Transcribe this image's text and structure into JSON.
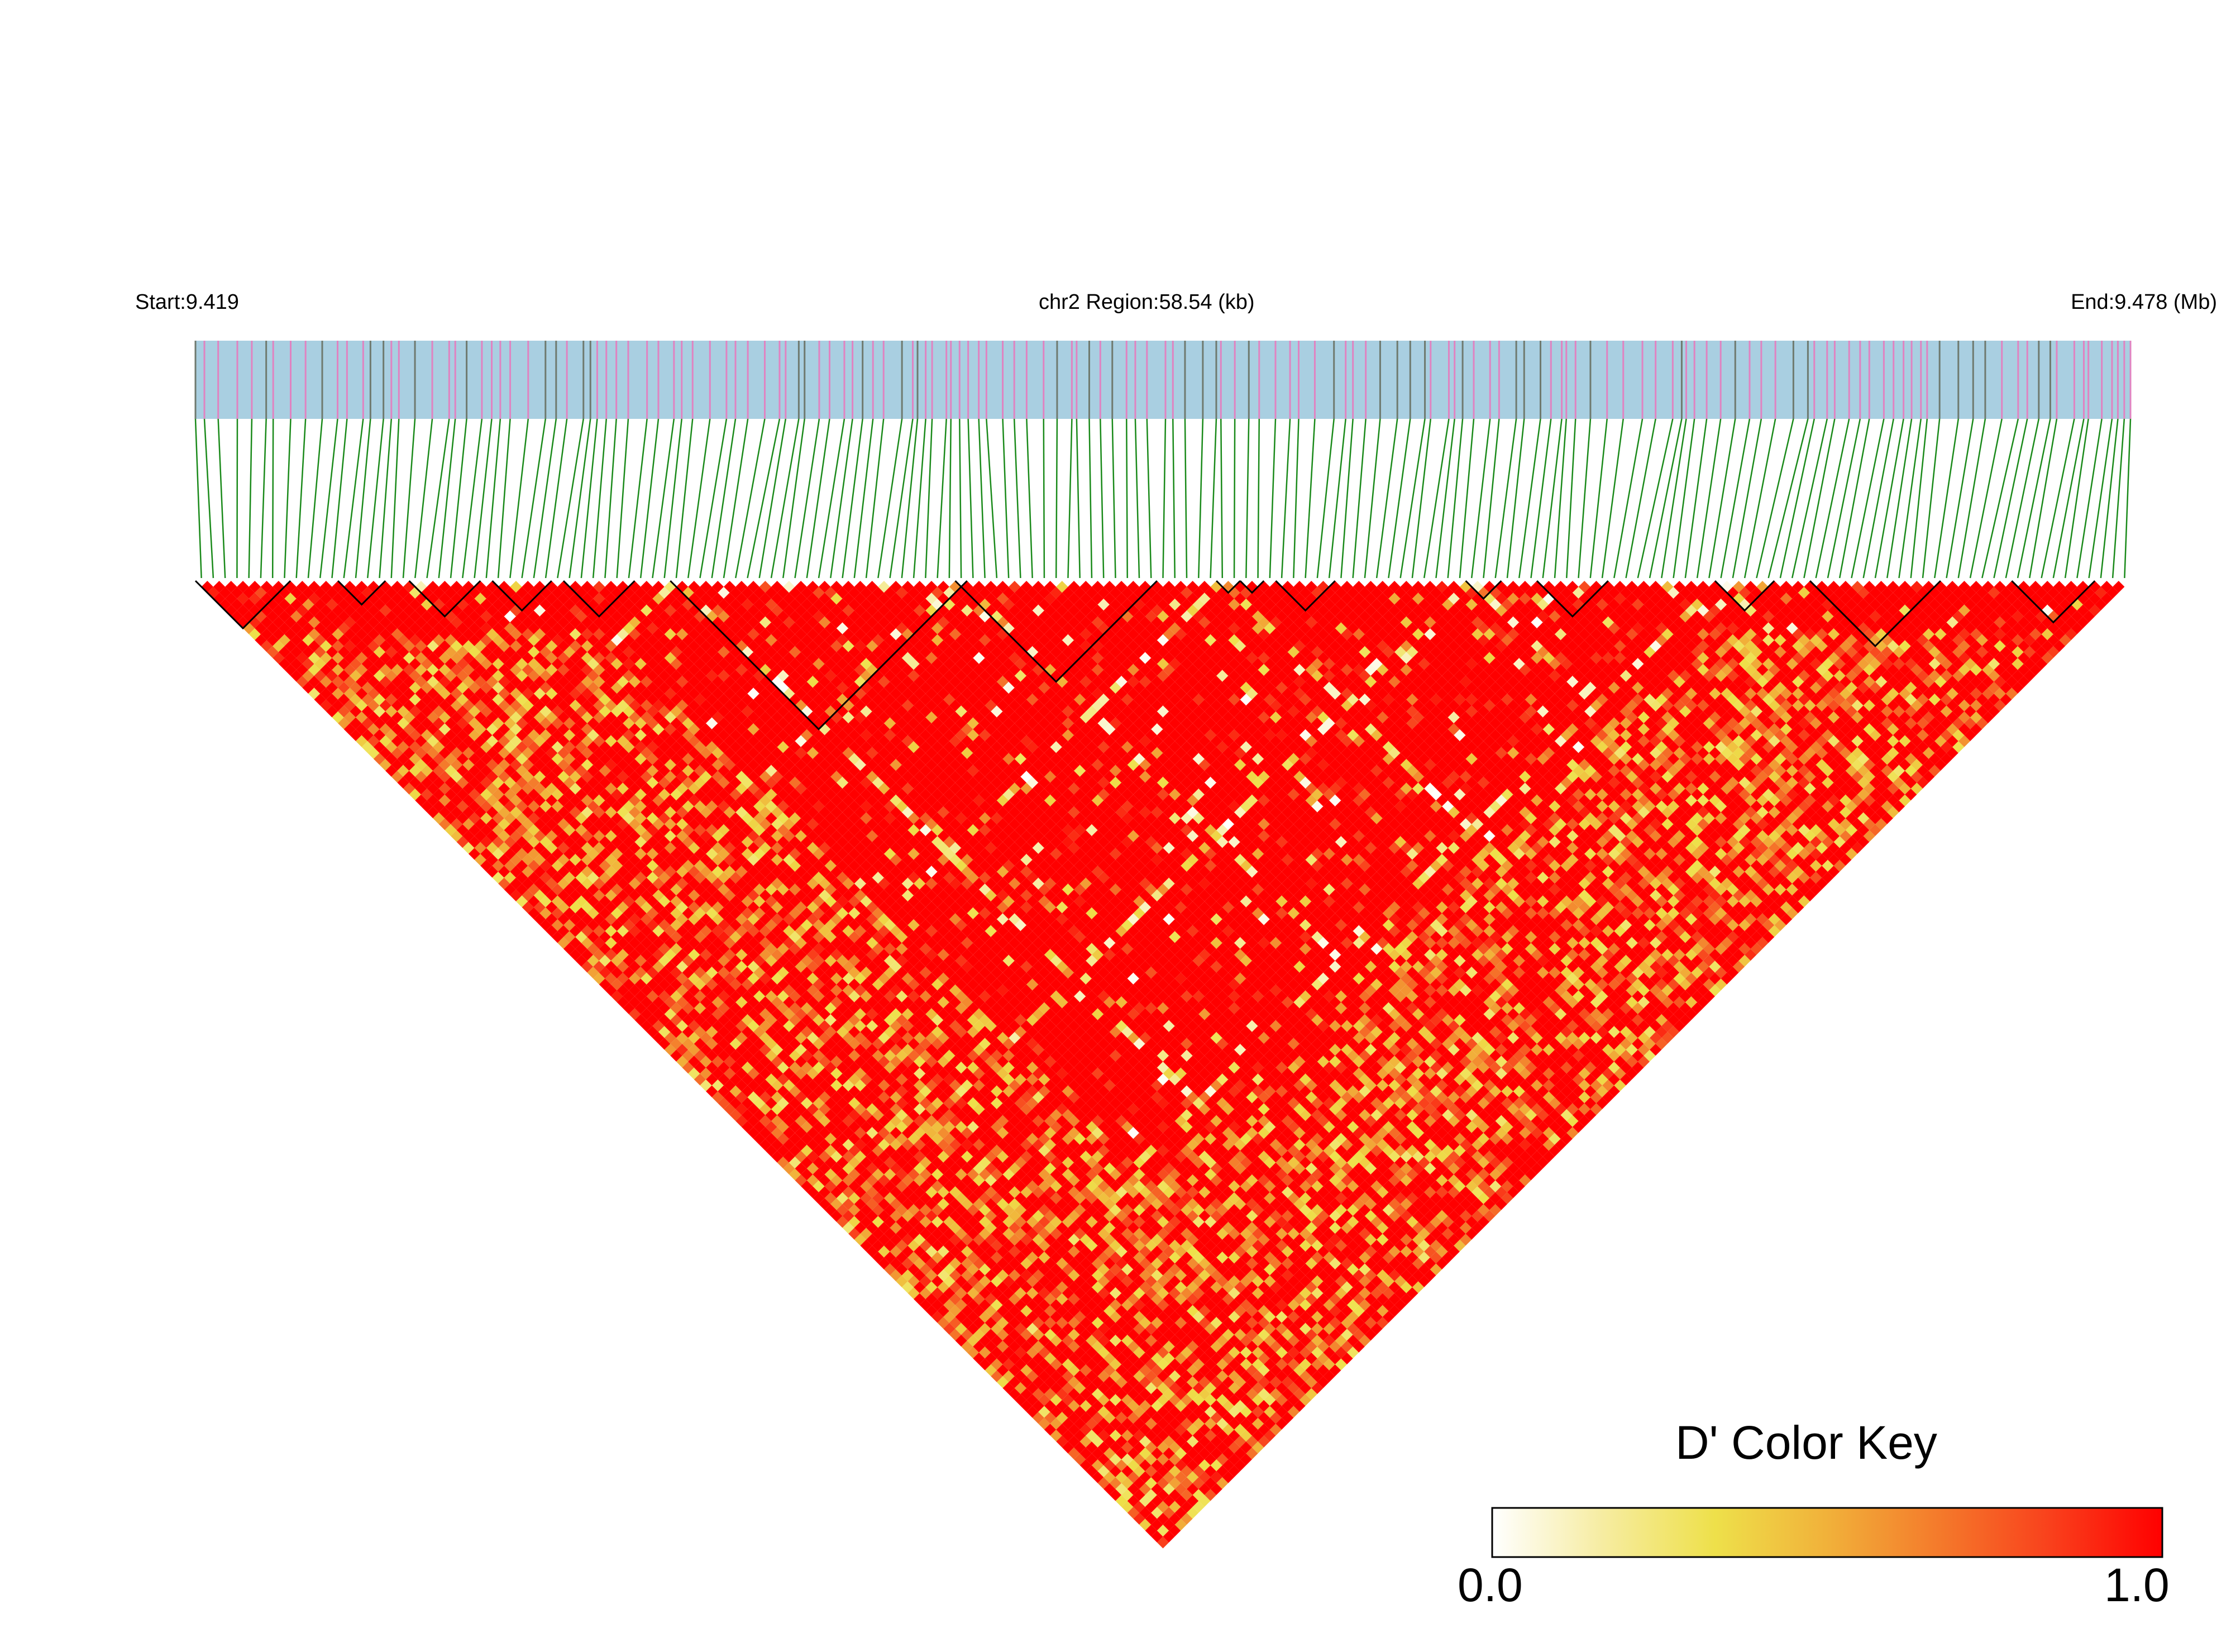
{
  "chart_data": {
    "type": "heatmap",
    "title": "",
    "subtitle": "",
    "chromosome": "chr2",
    "header": {
      "start_label": "Start:9.419",
      "region_label": "chr2 Region:58.54 (kb)",
      "end_label": "End:9.478 (Mb)"
    },
    "region": {
      "start_mb": 9.419,
      "end_mb": 9.478,
      "length_kb": 58.54
    },
    "color_key": {
      "title": "D' Color Key",
      "min_label": "0.0",
      "max_label": "1.0",
      "min": 0.0,
      "max": 1.0,
      "gradient_colors": [
        "#ffffff",
        "#f6eca0",
        "#eee04a",
        "#f1b13a",
        "#f47a2b",
        "#f9401c",
        "#ff0000"
      ]
    },
    "colors": {
      "track_background": "#a9cfe1",
      "snp_marker_pink": "#e083c1",
      "snp_marker_gray": "#6f7a6f",
      "connector_line": "#1a8a1a",
      "high_ld": "#ff0000",
      "block_outline": "#000000"
    },
    "snp_count": 163,
    "haplotype_blocks_snp_ranges": [
      [
        0,
        7
      ],
      [
        12,
        15
      ],
      [
        18,
        23
      ],
      [
        25,
        29
      ],
      [
        31,
        36
      ],
      [
        40,
        64
      ],
      [
        64,
        80
      ],
      [
        86,
        87
      ],
      [
        88,
        89
      ],
      [
        91,
        95
      ],
      [
        107,
        109
      ],
      [
        113,
        118
      ],
      [
        128,
        132
      ],
      [
        136,
        146
      ],
      [
        153,
        159
      ]
    ],
    "ld_pattern": "Predominantly high D' (near 1.0) across the region with scattered lower-D' cells (yellow/orange/white) concentrated near the lower-left and lower-right edges and along several diagonal streaks."
  }
}
